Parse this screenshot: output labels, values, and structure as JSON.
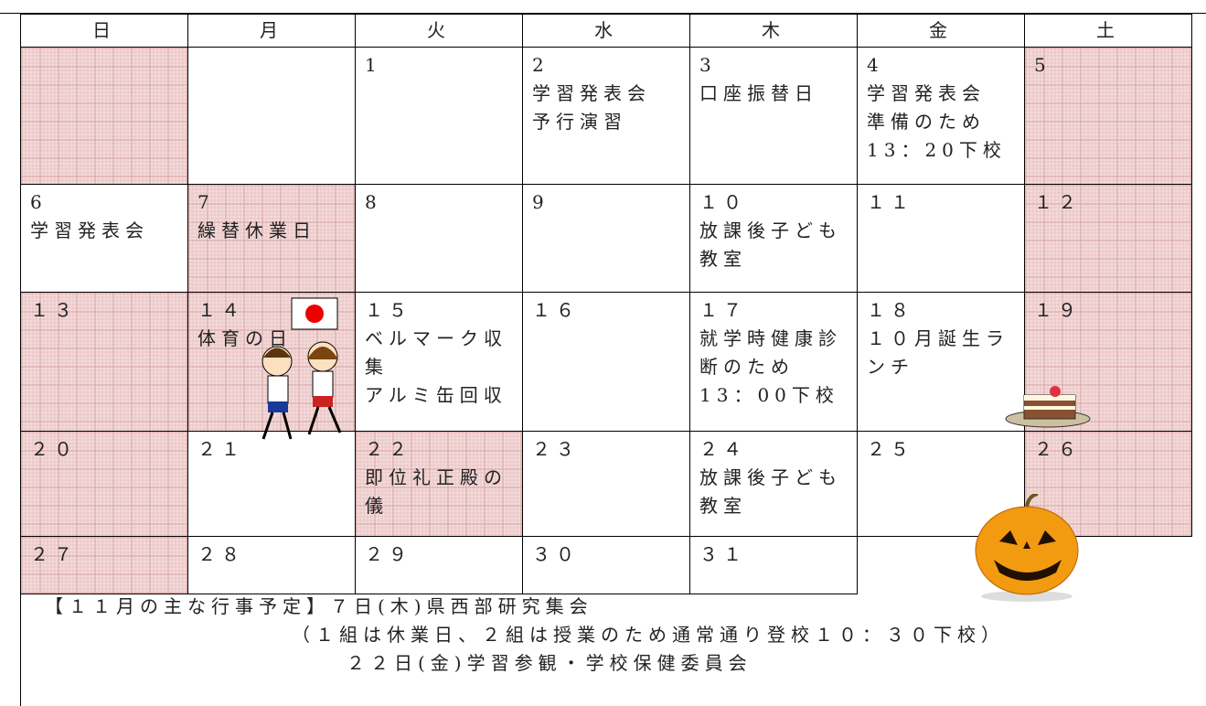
{
  "calendar": {
    "days": [
      "日",
      "月",
      "火",
      "水",
      "木",
      "金",
      "土"
    ],
    "weeks": [
      [
        [],
        [],
        [
          "1"
        ],
        [
          "2",
          "学習発表会",
          "予行演習"
        ],
        [
          "3",
          "口座振替日"
        ],
        [
          "4",
          "学習発表会",
          "準備のため",
          "13：20下校"
        ],
        [
          "5"
        ]
      ],
      [
        [
          "6",
          "学習発表会"
        ],
        [
          "7",
          "繰替休業日"
        ],
        [
          "8"
        ],
        [
          "9"
        ],
        [
          "１０",
          "放課後子ども教室"
        ],
        [
          "１１"
        ],
        [
          "１２"
        ]
      ],
      [
        [
          "１３"
        ],
        [
          "１４",
          "体育の日"
        ],
        [
          "１５",
          "ベルマーク収集",
          "アルミ缶回収"
        ],
        [
          "１６"
        ],
        [
          "１７",
          "就学時健康診断のため",
          "13：00下校"
        ],
        [
          "１８",
          "１０月誕生ランチ"
        ],
        [
          "１９"
        ]
      ],
      [
        [
          "２０"
        ],
        [
          "２１"
        ],
        [
          "２２",
          "即位礼正殿の儀"
        ],
        [
          "２３"
        ],
        [
          "２４",
          "放課後子ども教室"
        ],
        [
          "２５"
        ],
        [
          "２６"
        ]
      ],
      [
        [
          "２７"
        ],
        [
          "２８"
        ],
        [
          "２９"
        ],
        [
          "３０"
        ],
        [
          "３１"
        ],
        [],
        []
      ]
    ],
    "notes": [
      "【１１月の主な行事予定】７日(木)県西部研究集会",
      "（１組は休業日、２組は授業のため通常通り登校１０：３０下校）",
      "２２日(金)学習参観・学校保健委員会"
    ]
  }
}
